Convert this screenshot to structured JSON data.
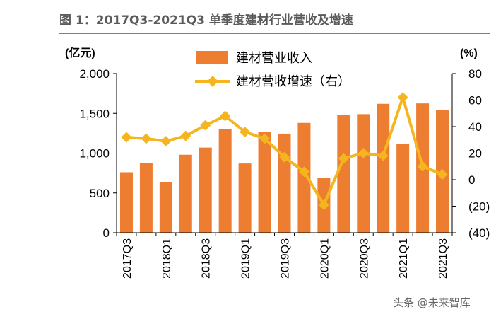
{
  "title": "图 1：2017Q3-2021Q3 单季度建材行业营收及增速",
  "watermark": "头条 @未来智库",
  "colors": {
    "bar": "#ED7D31",
    "line": "#F4B51F",
    "axis": "#000000",
    "title": "#5a5a5a"
  },
  "chart_data": {
    "type": "bar+line",
    "categories": [
      "2017Q3",
      "2017Q4",
      "2018Q1",
      "2018Q2",
      "2018Q3",
      "2018Q4",
      "2019Q1",
      "2019Q2",
      "2019Q3",
      "2019Q4",
      "2020Q1",
      "2020Q2",
      "2020Q3",
      "2020Q4",
      "2021Q1",
      "2021Q2",
      "2021Q3"
    ],
    "x_tick_labels": [
      "2017Q3",
      "2018Q1",
      "2018Q3",
      "2019Q1",
      "2019Q3",
      "2020Q1",
      "2020Q3",
      "2021Q1",
      "2021Q3"
    ],
    "series": [
      {
        "name": "建材营业收入",
        "type": "bar",
        "axis": "left",
        "values": [
          760,
          880,
          640,
          980,
          1070,
          1300,
          870,
          1270,
          1245,
          1380,
          690,
          1480,
          1490,
          1620,
          1120,
          1625,
          1545
        ]
      },
      {
        "name": "建材营收增速（右）",
        "type": "line",
        "axis": "right",
        "values": [
          32,
          31,
          29,
          33,
          41,
          48,
          36,
          31,
          17,
          6,
          -19,
          16,
          20,
          18,
          62,
          10,
          4
        ]
      }
    ],
    "left_axis": {
      "label": "(亿元)",
      "ylim": [
        0,
        2000
      ],
      "ticks": [
        0,
        500,
        1000,
        1500,
        2000
      ],
      "tick_labels": [
        "0",
        "500",
        "1,000",
        "1,500",
        "2,000"
      ]
    },
    "right_axis": {
      "label": "(%)",
      "ylim": [
        -40,
        80
      ],
      "ticks": [
        -40,
        -20,
        0,
        20,
        40,
        60,
        80
      ],
      "tick_labels": [
        "(40)",
        "(20)",
        "0",
        "20",
        "40",
        "60",
        "80"
      ]
    },
    "legend": {
      "position": "top-center",
      "entries": [
        "建材营业收入",
        "建材营收增速（右）"
      ]
    },
    "grid": false
  }
}
